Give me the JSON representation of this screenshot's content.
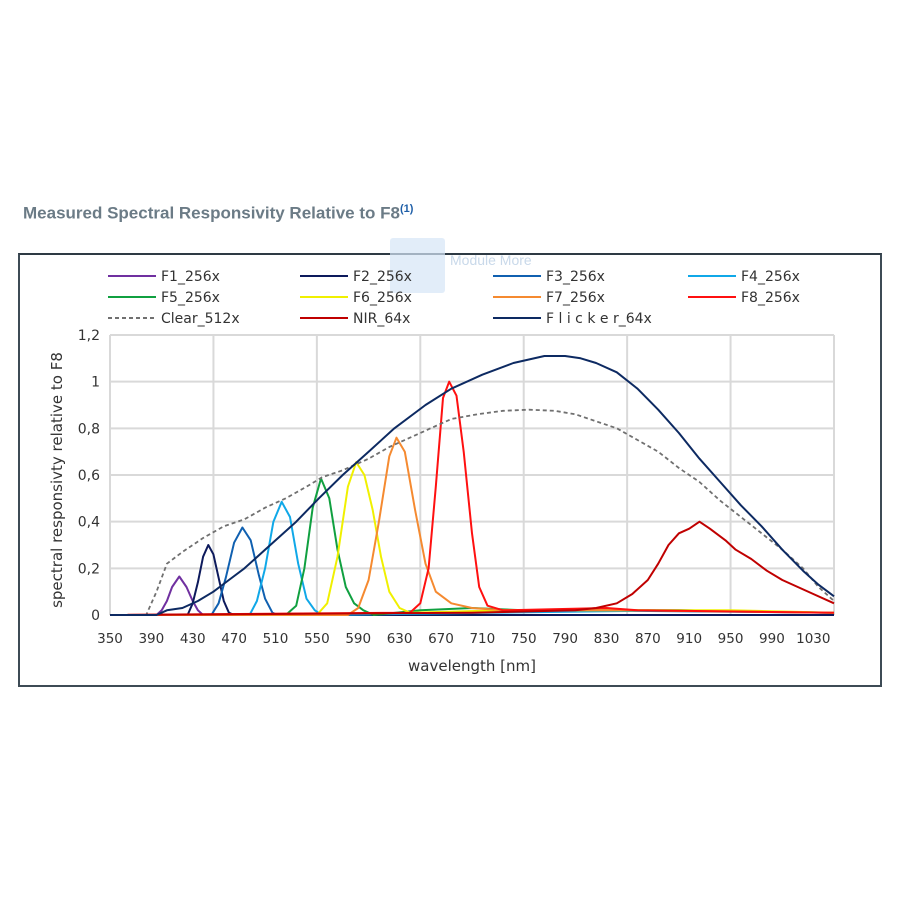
{
  "title": "Measured Spectral Responsivity Relative to F8",
  "title_sup": "(1)",
  "watermark": "Module More",
  "chart_data": {
    "type": "line",
    "title": "Measured Spectral Responsivity Relative to F8",
    "xlabel": "wavelength [nm]",
    "ylabel": "spectral responsivty relative to F8",
    "xlim": [
      350,
      1050
    ],
    "ylim": [
      0,
      1.2
    ],
    "xticks": [
      "350",
      "390",
      "430",
      "470",
      "510",
      "550",
      "590",
      "630",
      "670",
      "710",
      "750",
      "790",
      "830",
      "870",
      "910",
      "950",
      "990",
      "1030"
    ],
    "yticks": [
      "0",
      "0,2",
      "0,4",
      "0,6",
      "0,8",
      "1",
      "1,2"
    ],
    "grid": true,
    "legend_position": "top",
    "series": [
      {
        "name": "F1_256x",
        "color": "#7030a0",
        "dashed": false,
        "points": [
          [
            350,
            0
          ],
          [
            395,
            0
          ],
          [
            400,
            0.02
          ],
          [
            405,
            0.06
          ],
          [
            410,
            0.12
          ],
          [
            417,
            0.165
          ],
          [
            424,
            0.12
          ],
          [
            430,
            0.06
          ],
          [
            435,
            0.02
          ],
          [
            440,
            0
          ],
          [
            1050,
            0
          ]
        ]
      },
      {
        "name": "F2_256x",
        "color": "#0d1a5c",
        "dashed": false,
        "points": [
          [
            350,
            0
          ],
          [
            425,
            0
          ],
          [
            430,
            0.05
          ],
          [
            435,
            0.14
          ],
          [
            440,
            0.25
          ],
          [
            445,
            0.3
          ],
          [
            450,
            0.26
          ],
          [
            455,
            0.16
          ],
          [
            460,
            0.06
          ],
          [
            465,
            0.01
          ],
          [
            470,
            0
          ],
          [
            1050,
            0
          ]
        ]
      },
      {
        "name": "F3_256x",
        "color": "#1060b0",
        "dashed": false,
        "points": [
          [
            350,
            0
          ],
          [
            448,
            0
          ],
          [
            455,
            0.05
          ],
          [
            462,
            0.16
          ],
          [
            470,
            0.31
          ],
          [
            478,
            0.375
          ],
          [
            486,
            0.32
          ],
          [
            494,
            0.17
          ],
          [
            500,
            0.07
          ],
          [
            507,
            0.01
          ],
          [
            512,
            0
          ],
          [
            800,
            0.02
          ],
          [
            1050,
            0.01
          ]
        ]
      },
      {
        "name": "F4_256x",
        "color": "#10a8e8",
        "dashed": false,
        "points": [
          [
            350,
            0
          ],
          [
            485,
            0
          ],
          [
            492,
            0.06
          ],
          [
            500,
            0.2
          ],
          [
            508,
            0.4
          ],
          [
            516,
            0.485
          ],
          [
            524,
            0.42
          ],
          [
            532,
            0.22
          ],
          [
            540,
            0.07
          ],
          [
            548,
            0.02
          ],
          [
            555,
            0
          ],
          [
            900,
            0.02
          ],
          [
            1050,
            0.01
          ]
        ]
      },
      {
        "name": "F5_256x",
        "color": "#10a040",
        "dashed": false,
        "points": [
          [
            350,
            0
          ],
          [
            520,
            0
          ],
          [
            530,
            0.04
          ],
          [
            538,
            0.2
          ],
          [
            546,
            0.46
          ],
          [
            554,
            0.585
          ],
          [
            562,
            0.5
          ],
          [
            570,
            0.28
          ],
          [
            578,
            0.12
          ],
          [
            586,
            0.05
          ],
          [
            595,
            0.02
          ],
          [
            605,
            0
          ],
          [
            650,
            0.02
          ],
          [
            700,
            0.03
          ],
          [
            750,
            0.02
          ],
          [
            800,
            0.02
          ],
          [
            900,
            0.02
          ],
          [
            1050,
            0.01
          ]
        ]
      },
      {
        "name": "F6_256x",
        "color": "#f0f000",
        "dashed": false,
        "points": [
          [
            350,
            0
          ],
          [
            550,
            0
          ],
          [
            560,
            0.05
          ],
          [
            570,
            0.25
          ],
          [
            580,
            0.55
          ],
          [
            588,
            0.655
          ],
          [
            596,
            0.6
          ],
          [
            604,
            0.45
          ],
          [
            612,
            0.25
          ],
          [
            620,
            0.1
          ],
          [
            630,
            0.03
          ],
          [
            640,
            0.01
          ],
          [
            730,
            0.02
          ],
          [
            800,
            0.02
          ],
          [
            950,
            0.02
          ],
          [
            1050,
            0.01
          ]
        ]
      },
      {
        "name": "F7_256x",
        "color": "#f58a30",
        "dashed": false,
        "points": [
          [
            350,
            0
          ],
          [
            580,
            0
          ],
          [
            590,
            0.03
          ],
          [
            600,
            0.15
          ],
          [
            610,
            0.4
          ],
          [
            620,
            0.68
          ],
          [
            627,
            0.76
          ],
          [
            635,
            0.7
          ],
          [
            645,
            0.45
          ],
          [
            655,
            0.22
          ],
          [
            665,
            0.1
          ],
          [
            680,
            0.05
          ],
          [
            700,
            0.03
          ],
          [
            730,
            0.02
          ],
          [
            850,
            0.02
          ],
          [
            1050,
            0.01
          ]
        ]
      },
      {
        "name": "F8_256x",
        "color": "#ff1010",
        "dashed": false,
        "points": [
          [
            350,
            0
          ],
          [
            640,
            0.01
          ],
          [
            650,
            0.05
          ],
          [
            658,
            0.2
          ],
          [
            665,
            0.55
          ],
          [
            672,
            0.93
          ],
          [
            678,
            1.0
          ],
          [
            685,
            0.94
          ],
          [
            692,
            0.7
          ],
          [
            700,
            0.35
          ],
          [
            707,
            0.12
          ],
          [
            715,
            0.04
          ],
          [
            730,
            0.02
          ],
          [
            830,
            0.03
          ],
          [
            860,
            0.02
          ],
          [
            1050,
            0.01
          ]
        ]
      },
      {
        "name": "Clear_512x",
        "color": "#707070",
        "dashed": true,
        "points": [
          [
            350,
            0
          ],
          [
            385,
            0
          ],
          [
            395,
            0.1
          ],
          [
            405,
            0.22
          ],
          [
            420,
            0.27
          ],
          [
            440,
            0.33
          ],
          [
            460,
            0.38
          ],
          [
            480,
            0.41
          ],
          [
            500,
            0.46
          ],
          [
            520,
            0.5
          ],
          [
            540,
            0.55
          ],
          [
            555,
            0.59
          ],
          [
            575,
            0.62
          ],
          [
            600,
            0.67
          ],
          [
            620,
            0.72
          ],
          [
            640,
            0.76
          ],
          [
            660,
            0.8
          ],
          [
            680,
            0.84
          ],
          [
            705,
            0.86
          ],
          [
            730,
            0.875
          ],
          [
            755,
            0.88
          ],
          [
            780,
            0.875
          ],
          [
            800,
            0.86
          ],
          [
            820,
            0.83
          ],
          [
            840,
            0.8
          ],
          [
            860,
            0.75
          ],
          [
            880,
            0.7
          ],
          [
            900,
            0.63
          ],
          [
            920,
            0.57
          ],
          [
            940,
            0.49
          ],
          [
            960,
            0.42
          ],
          [
            980,
            0.35
          ],
          [
            1000,
            0.28
          ],
          [
            1020,
            0.2
          ],
          [
            1035,
            0.12
          ],
          [
            1050,
            0.06
          ]
        ]
      },
      {
        "name": "NIR_64x",
        "color": "#c00000",
        "dashed": false,
        "points": [
          [
            350,
            0
          ],
          [
            700,
            0.01
          ],
          [
            800,
            0.02
          ],
          [
            820,
            0.03
          ],
          [
            840,
            0.05
          ],
          [
            855,
            0.09
          ],
          [
            870,
            0.15
          ],
          [
            880,
            0.22
          ],
          [
            890,
            0.3
          ],
          [
            900,
            0.35
          ],
          [
            910,
            0.37
          ],
          [
            920,
            0.4
          ],
          [
            930,
            0.37
          ],
          [
            945,
            0.32
          ],
          [
            955,
            0.28
          ],
          [
            970,
            0.24
          ],
          [
            985,
            0.19
          ],
          [
            1000,
            0.15
          ],
          [
            1015,
            0.12
          ],
          [
            1030,
            0.09
          ],
          [
            1050,
            0.05
          ]
        ]
      },
      {
        "name": "F l i c k e r_64x",
        "color": "#0d2a62",
        "dashed": false,
        "points": [
          [
            350,
            0
          ],
          [
            395,
            0
          ],
          [
            405,
            0.02
          ],
          [
            420,
            0.03
          ],
          [
            435,
            0.06
          ],
          [
            450,
            0.1
          ],
          [
            465,
            0.15
          ],
          [
            480,
            0.2
          ],
          [
            505,
            0.3
          ],
          [
            530,
            0.4
          ],
          [
            552,
            0.5
          ],
          [
            575,
            0.6
          ],
          [
            600,
            0.7
          ],
          [
            625,
            0.8
          ],
          [
            655,
            0.9
          ],
          [
            680,
            0.97
          ],
          [
            710,
            1.03
          ],
          [
            740,
            1.08
          ],
          [
            770,
            1.11
          ],
          [
            790,
            1.11
          ],
          [
            805,
            1.1
          ],
          [
            820,
            1.08
          ],
          [
            840,
            1.04
          ],
          [
            860,
            0.97
          ],
          [
            880,
            0.88
          ],
          [
            900,
            0.78
          ],
          [
            920,
            0.67
          ],
          [
            940,
            0.57
          ],
          [
            960,
            0.47
          ],
          [
            980,
            0.38
          ],
          [
            1000,
            0.28
          ],
          [
            1020,
            0.19
          ],
          [
            1035,
            0.13
          ],
          [
            1050,
            0.08
          ]
        ]
      }
    ]
  }
}
